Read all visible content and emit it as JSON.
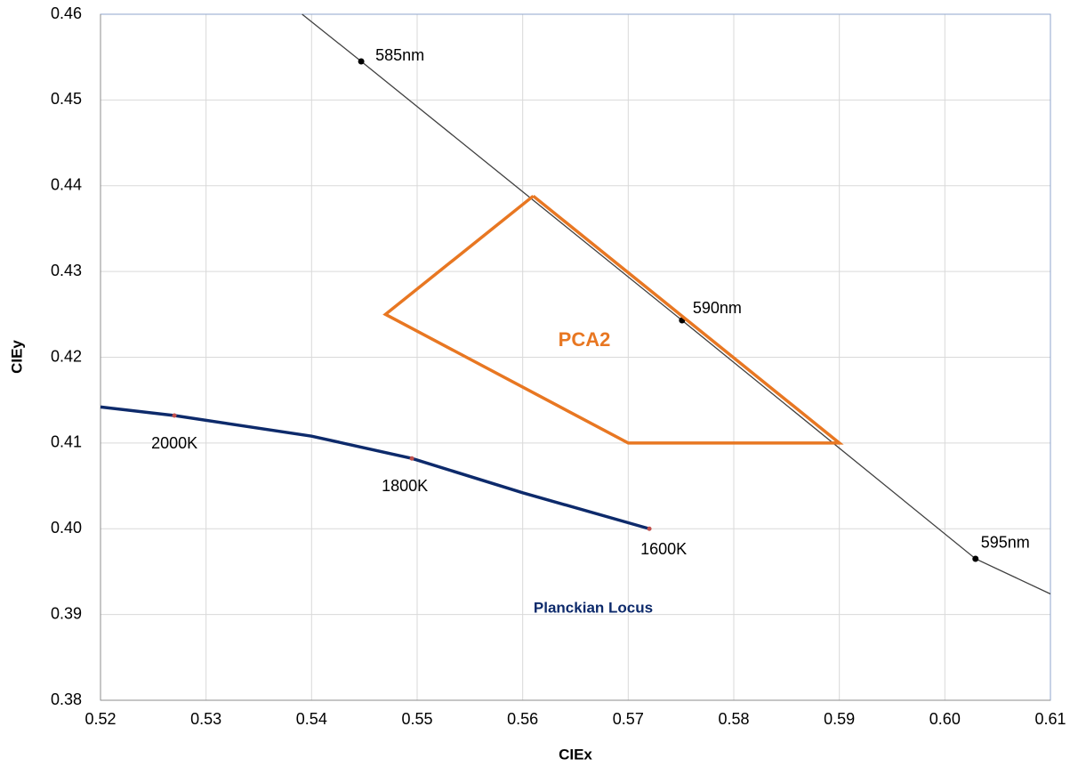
{
  "chart_data": {
    "type": "line",
    "x_label": "CIEx",
    "y_label": "CIEy",
    "xlim": [
      0.52,
      0.61
    ],
    "ylim": [
      0.38,
      0.46
    ],
    "xticks": [
      0.52,
      0.53,
      0.54,
      0.55,
      0.56,
      0.57,
      0.58,
      0.59,
      {
        "value": 0.6,
        "label": "0.60"
      },
      0.61
    ],
    "yticks": [
      0.38,
      0.39,
      {
        "value": 0.4,
        "label": "0.40"
      },
      0.41,
      0.42,
      0.43,
      0.44,
      0.45,
      0.46
    ],
    "grid": true,
    "series": [
      {
        "color": "#404040",
        "x": [
          0.5391,
          0.5447,
          0.5751,
          0.6029,
          0.61
        ],
        "values": [
          0.46,
          0.4545,
          0.4243,
          0.3965,
          0.3924
        ],
        "labels": [
          null,
          "585nm",
          "590nm",
          "595nm",
          null
        ]
      },
      {
        "color": "#0d2a6b",
        "x": [
          0.52,
          0.527,
          0.54,
          0.5495,
          0.56,
          0.572
        ],
        "values": [
          0.4142,
          0.4132,
          0.4108,
          0.4082,
          0.4042,
          0.4
        ],
        "labels": [
          null,
          "2000K",
          null,
          "1800K",
          null,
          "1600K"
        ]
      },
      {
        "color": "#e87722",
        "x": [
          0.561,
          0.547,
          0.57,
          0.59,
          0.561
        ],
        "values": [
          0.4388,
          0.425,
          0.41,
          0.41,
          0.4388
        ],
        "labels": [
          null,
          null,
          null,
          null,
          null
        ]
      }
    ],
    "annotations": [
      "PCA2",
      "Planckian Locus"
    ]
  }
}
